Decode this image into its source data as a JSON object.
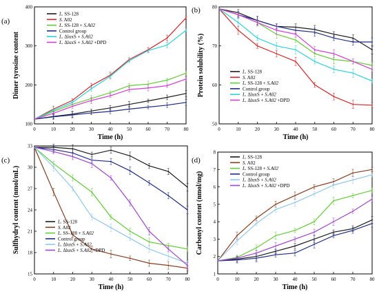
{
  "figure": {
    "panel_count": 4
  },
  "chart_data": [
    {
      "panel_label": "(a)",
      "type": "line",
      "xlabel": "Time (h)",
      "ylabel": "Dimer tyrosine content",
      "x": [
        0,
        10,
        20,
        30,
        40,
        50,
        60,
        70,
        80
      ],
      "xlim": [
        0,
        80
      ],
      "ylim": [
        100,
        400
      ],
      "xticks": [
        0,
        10,
        20,
        30,
        40,
        50,
        60,
        70,
        80
      ],
      "yticks": [
        100,
        200,
        300,
        400
      ],
      "grid": false,
      "legend_position": "top-left",
      "series": [
        {
          "name": "L. SS-128",
          "color": "#1a1a1a",
          "values": [
            112,
            119,
            125,
            133,
            141,
            150,
            159,
            168,
            178
          ]
        },
        {
          "name": "S. A02",
          "color": "#e02020",
          "values": [
            112,
            138,
            160,
            198,
            225,
            265,
            290,
            320,
            372
          ]
        },
        {
          "name": "L. SS-128 + S.A02",
          "color": "#5fcf2f",
          "values": [
            112,
            132,
            150,
            165,
            180,
            198,
            202,
            212,
            230
          ]
        },
        {
          "name": "Control group",
          "color": "#1c2a8c",
          "values": [
            112,
            118,
            123,
            128,
            132,
            138,
            143,
            148,
            155
          ]
        },
        {
          "name": "L. ΔluxS + S.A02",
          "color": "#26d4e0",
          "values": [
            112,
            135,
            155,
            190,
            222,
            262,
            288,
            302,
            340
          ]
        },
        {
          "name": "L. ΔluxS + S.A02 +DPD",
          "color": "#d83ad8",
          "values": [
            112,
            127,
            145,
            160,
            172,
            188,
            192,
            198,
            215
          ]
        }
      ]
    },
    {
      "panel_label": "(b)",
      "type": "line",
      "xlabel": "Time (h)",
      "ylabel": "Protein solubility (%)",
      "x": [
        0,
        10,
        20,
        30,
        40,
        50,
        60,
        70,
        80
      ],
      "xlim": [
        0,
        80
      ],
      "ylim": [
        50,
        80
      ],
      "xticks": [
        0,
        10,
        20,
        30,
        40,
        50,
        60,
        70,
        80
      ],
      "yticks": [
        50,
        60,
        70,
        80
      ],
      "grid": false,
      "legend_position": "bottom-left",
      "series": [
        {
          "name": "L. SS-128",
          "color": "#1a1a1a",
          "values": [
            79.5,
            78.5,
            76.5,
            75.0,
            74.8,
            74.2,
            73.0,
            72.0,
            69.0
          ]
        },
        {
          "name": "S. A02",
          "color": "#e02020",
          "values": [
            79.5,
            74.0,
            70.0,
            68.0,
            66.0,
            60.0,
            57.0,
            55.0,
            54.8
          ]
        },
        {
          "name": "L. SS-128 + S.A02",
          "color": "#5fcf2f",
          "values": [
            79.5,
            78.0,
            76.0,
            73.0,
            71.5,
            68.0,
            66.5,
            66.0,
            65.0
          ]
        },
        {
          "name": "Control group",
          "color": "#1c2a8c",
          "values": [
            79.5,
            78.0,
            76.5,
            75.0,
            74.0,
            73.5,
            72.0,
            71.0,
            71.0
          ]
        },
        {
          "name": "L. ΔluxS + S.A02",
          "color": "#26d4e0",
          "values": [
            79.5,
            76.0,
            72.0,
            70.0,
            69.0,
            66.0,
            64.0,
            63.0,
            61.0
          ]
        },
        {
          "name": "L. ΔluxS + S.A02 +DPD",
          "color": "#d83ad8",
          "values": [
            79.5,
            78.0,
            76.0,
            74.0,
            73.0,
            69.0,
            68.0,
            66.0,
            64.0
          ]
        }
      ]
    },
    {
      "panel_label": "(c)",
      "type": "line",
      "xlabel": "Time (h)",
      "ylabel": "Sulfhydryl content (nmol/mL)",
      "x": [
        0,
        10,
        20,
        30,
        40,
        50,
        60,
        70,
        80
      ],
      "xlim": [
        0,
        80
      ],
      "ylim": [
        15,
        33
      ],
      "xticks": [
        0,
        10,
        20,
        30,
        40,
        50,
        60,
        70,
        80
      ],
      "yticks": [
        15,
        18,
        21,
        24,
        27,
        30,
        33
      ],
      "grid": false,
      "legend_position": "bottom-left",
      "series": [
        {
          "name": "L. SS-128",
          "color": "#1a1a1a",
          "values": [
            32.8,
            32.8,
            32.6,
            31.8,
            32.4,
            31.6,
            30.2,
            29.4,
            27.2
          ]
        },
        {
          "name": "S. A02",
          "color": "#8b3a1a",
          "values": [
            32.8,
            26.5,
            20.5,
            18.5,
            17.8,
            17.2,
            16.5,
            16.2,
            15.8
          ]
        },
        {
          "name": "L. SS-128 + S.A02",
          "color": "#5fcf2f",
          "values": [
            32.8,
            30.5,
            28.5,
            26.5,
            23.0,
            21.0,
            19.5,
            19.0,
            18.5
          ]
        },
        {
          "name": "Control group",
          "color": "#1c2a8c",
          "values": [
            32.8,
            32.5,
            32.0,
            31.0,
            30.8,
            29.5,
            27.8,
            26.0,
            24.0
          ]
        },
        {
          "name": "L. ΔluxS + S.A02",
          "color": "#8ec8f0",
          "values": [
            32.8,
            30.0,
            27.0,
            23.0,
            21.5,
            20.0,
            18.5,
            17.5,
            16.5
          ]
        },
        {
          "name": "L. ΔluxS + S.A02 +DPD",
          "color": "#a040d8",
          "values": [
            32.8,
            32.2,
            31.5,
            30.5,
            28.5,
            25.0,
            21.0,
            18.5,
            16.2
          ]
        }
      ]
    },
    {
      "panel_label": "(d)",
      "type": "line",
      "xlabel": "Time (h)",
      "ylabel": "Carbonyl content (nmol/mg)",
      "x": [
        0,
        10,
        20,
        30,
        40,
        50,
        60,
        70,
        80
      ],
      "xlim": [
        0,
        80
      ],
      "ylim": [
        1,
        8
      ],
      "xticks": [
        0,
        10,
        20,
        30,
        40,
        50,
        60,
        70,
        80
      ],
      "yticks": [
        1,
        2,
        3,
        4,
        5,
        6,
        7,
        8
      ],
      "grid": false,
      "legend_position": "top-left",
      "series": [
        {
          "name": "L. SS-128",
          "color": "#1a1a1a",
          "values": [
            1.75,
            1.85,
            2.0,
            2.3,
            2.6,
            3.0,
            3.4,
            3.6,
            4.1
          ]
        },
        {
          "name": "S. A02",
          "color": "#8b3a1a",
          "values": [
            1.75,
            3.2,
            4.2,
            5.0,
            5.5,
            6.0,
            6.3,
            6.8,
            7.0
          ]
        },
        {
          "name": "L. SS-128 + S.A02",
          "color": "#5fcf2f",
          "values": [
            1.75,
            1.95,
            2.5,
            3.2,
            3.5,
            4.0,
            5.2,
            5.5,
            5.8
          ]
        },
        {
          "name": "Control group",
          "color": "#1c2a8c",
          "values": [
            1.75,
            1.8,
            1.9,
            2.1,
            2.2,
            2.7,
            3.2,
            3.5,
            3.9
          ]
        },
        {
          "name": "L. ΔluxS + S.A02",
          "color": "#8ec8f0",
          "values": [
            1.75,
            2.9,
            3.9,
            4.7,
            5.1,
            5.6,
            6.1,
            6.4,
            6.7
          ]
        },
        {
          "name": "L. ΔluxS + S.A02 +DPD",
          "color": "#a040d8",
          "values": [
            1.75,
            1.9,
            2.2,
            2.6,
            3.0,
            3.4,
            4.0,
            4.6,
            5.3
          ]
        }
      ]
    }
  ]
}
